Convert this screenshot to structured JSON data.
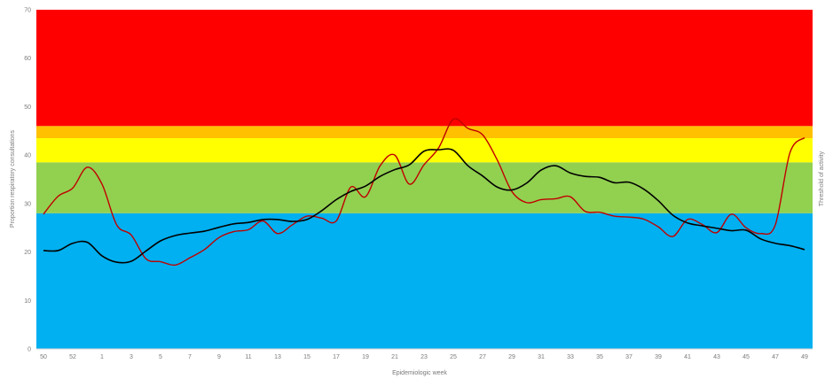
{
  "chart_data": {
    "type": "line",
    "title": "",
    "xlabel": "Epidemiologic week",
    "ylabel": "Proportion respiratory consultations",
    "ylabel_right": "Threshold of activity",
    "ylim": [
      0,
      70
    ],
    "yticks": [
      0,
      10,
      20,
      30,
      40,
      50,
      60,
      70
    ],
    "grid": false,
    "legend": "none",
    "weeks": [
      "50",
      "51",
      "52",
      "53",
      "1",
      "2",
      "3",
      "4",
      "5",
      "6",
      "7",
      "8",
      "9",
      "10",
      "11",
      "12",
      "13",
      "14",
      "15",
      "16",
      "17",
      "18",
      "19",
      "20",
      "21",
      "22",
      "23",
      "24",
      "25",
      "26",
      "27",
      "28",
      "29",
      "30",
      "31",
      "32",
      "33",
      "34",
      "35",
      "36",
      "37",
      "38",
      "39",
      "40",
      "41",
      "42",
      "43",
      "44",
      "45",
      "46",
      "47",
      "48",
      "49"
    ],
    "x_tick_labels": [
      "50",
      "52",
      "1",
      "3",
      "5",
      "7",
      "9",
      "11",
      "13",
      "15",
      "17",
      "19",
      "21",
      "23",
      "25",
      "27",
      "29",
      "31",
      "33",
      "35",
      "37",
      "39",
      "41",
      "43",
      "45",
      "47",
      "49"
    ],
    "threshold_bands": [
      {
        "from": 0,
        "to": 28,
        "color": "#00b0f0"
      },
      {
        "from": 28,
        "to": 38.5,
        "color": "#92d050"
      },
      {
        "from": 38.5,
        "to": 43.5,
        "color": "#ffff00"
      },
      {
        "from": 43.5,
        "to": 46,
        "color": "#ffc000"
      },
      {
        "from": 46,
        "to": 70,
        "color": "#ff0000"
      }
    ],
    "series": [
      {
        "color": "#c00000",
        "values": [
          27.8,
          31.5,
          33.2,
          37.5,
          34.0,
          25.6,
          23.5,
          18.6,
          18.0,
          17.3,
          18.8,
          20.5,
          23.0,
          24.2,
          24.6,
          26.4,
          23.8,
          25.6,
          27.4,
          27.0,
          26.4,
          33.4,
          31.4,
          37.8,
          40.0,
          34.0,
          38.0,
          41.5,
          47.4,
          45.5,
          44.2,
          39.0,
          32.5,
          30.2,
          30.8,
          31.0,
          31.4,
          28.4,
          28.2,
          27.4,
          27.2,
          26.8,
          25.2,
          23.2,
          26.7,
          25.7,
          24.0,
          27.8,
          25.0,
          23.8,
          25.6,
          40.5,
          43.6
        ]
      },
      {
        "color": "#000000",
        "values": [
          20.3,
          20.3,
          21.8,
          22.0,
          19.2,
          17.9,
          18.1,
          20.2,
          22.3,
          23.4,
          23.9,
          24.3,
          25.1,
          25.8,
          26.1,
          26.7,
          26.7,
          26.3,
          26.7,
          28.5,
          30.8,
          32.5,
          33.6,
          35.6,
          37.0,
          38.0,
          40.8,
          41.1,
          41.0,
          37.8,
          35.7,
          33.4,
          32.8,
          34.2,
          36.9,
          37.8,
          36.3,
          35.6,
          35.4,
          34.3,
          34.4,
          33.0,
          30.6,
          27.6,
          26.0,
          25.4,
          24.9,
          24.4,
          24.5,
          22.7,
          21.8,
          21.3,
          20.5
        ]
      }
    ]
  }
}
